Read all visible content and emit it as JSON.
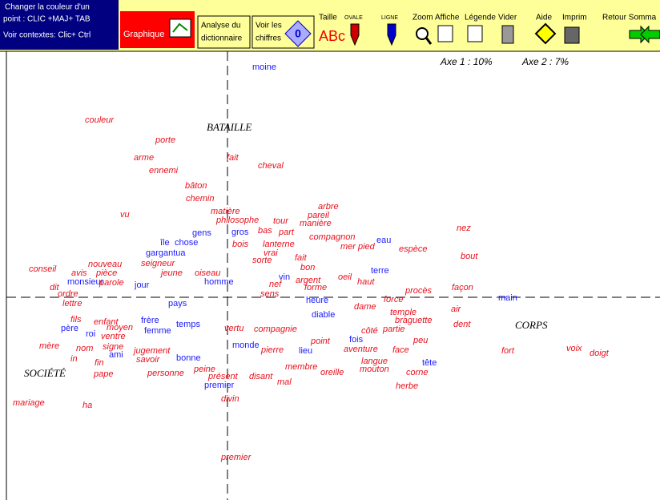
{
  "toolbar": {
    "info_lines": [
      "Changer la couleur d'un",
      "point : CLIC +MAJ+ TAB",
      "Voir contextes: Clic+ Ctrl"
    ],
    "graphique": "Graphique",
    "analyse": [
      "Analyse du",
      "dictionnaire"
    ],
    "chiffres": [
      "Voir les",
      "chiffres"
    ],
    "chiffres_icon": "0",
    "taille_icon": "ABc",
    "tools": [
      "Taille",
      "OVALE",
      "LIGNE",
      "Zoom",
      "Affiche",
      "Légende",
      "Vider",
      "Aide",
      "Imprim",
      "Retour Somma"
    ]
  },
  "axis_info": [
    "Axe 1 : 10%",
    "Axe 2 : 7%"
  ],
  "chart_data": {
    "type": "scatter",
    "xlim": [
      -276,
      540
    ],
    "ylim": [
      -253,
      307
    ],
    "annotations": [
      {
        "text": "BATAILLE",
        "x": -26,
        "y": 211
      },
      {
        "text": "CORPS",
        "x": 359,
        "y": -36
      },
      {
        "text": "SOCIÉTÉ",
        "x": -254,
        "y": -96
      }
    ],
    "series": [
      {
        "color": "#e8101c",
        "style": "italic",
        "labels": [
          "couleur",
          "porte",
          "arme",
          "ennemi",
          "fait",
          "cheval",
          "bâton",
          "chemin",
          "vu",
          "matière",
          "arbre",
          "pareil",
          "philosophe",
          "tour",
          "manière",
          "nez",
          "bas",
          "part",
          "compagnon",
          "bois",
          "lanterne",
          "mer",
          "pied",
          "espèce",
          "bout",
          "vrai",
          "seigneur",
          "sorte",
          "fait",
          "conseil",
          "nouveau",
          "avis",
          "pièce",
          "jeune",
          "oiseau",
          "bon",
          "oeil",
          "haut",
          "argent",
          "nef",
          "forme",
          "façon",
          "sens",
          "dit",
          "parole",
          "procès",
          "ordre",
          "force",
          "lettre",
          "air",
          "dame",
          "temple",
          "fils",
          "enfant",
          "braguette",
          "dent",
          "moyen",
          "vertu",
          "partie",
          "côté",
          "ventre",
          "compagnie",
          "mère",
          "nom",
          "signe",
          "jugement",
          "pierre",
          "peu",
          "face",
          "aventure",
          "in",
          "fin",
          "savoir",
          "langue",
          "mouton",
          "corne",
          "pape",
          "personne",
          "peine",
          "présent",
          "disant",
          "mal",
          "membre",
          "oreille",
          "herbe",
          "mariage",
          "ha",
          "divin",
          "premier",
          "fort",
          "voix",
          "doigt",
          "point"
        ],
        "x": [
          -178,
          -90,
          -117,
          -98,
          -1,
          38,
          -53,
          -52,
          -134,
          -21,
          113,
          100,
          -14,
          57,
          90,
          286,
          38,
          64,
          102,
          6,
          44,
          141,
          163,
          214,
          291,
          45,
          -108,
          31,
          84,
          -248,
          -174,
          -195,
          -164,
          -83,
          -41,
          91,
          138,
          162,
          85,
          52,
          96,
          280,
          41,
          -222,
          -160,
          222,
          -212,
          195,
          -206,
          279,
          158,
          203,
          -196,
          -167,
          209,
          282,
          -151,
          -4,
          194,
          167,
          -158,
          33,
          -235,
          -189,
          -156,
          -117,
          42,
          232,
          206,
          145,
          -196,
          -166,
          -114,
          167,
          165,
          223,
          -167,
          -100,
          -42,
          -24,
          27,
          62,
          72,
          116,
          210,
          -268,
          -181,
          -8,
          -8,
          342,
          423,
          452,
          104
        ],
        "y": [
          221,
          196,
          174,
          158,
          174,
          164,
          139,
          123,
          103,
          107,
          113,
          102,
          96,
          95,
          92,
          86,
          83,
          81,
          75,
          66,
          66,
          63,
          63,
          60,
          51,
          55,
          42,
          46,
          49,
          35,
          41,
          30,
          30,
          30,
          30,
          37,
          25,
          19,
          21,
          16,
          12,
          12,
          4,
          12,
          18,
          8,
          4,
          -3,
          -8,
          -15,
          -12,
          -19,
          -28,
          -31,
          -29,
          -34,
          -38,
          -39,
          -40,
          -42,
          -49,
          -40,
          -61,
          -64,
          -62,
          -67,
          -66,
          -54,
          -66,
          -65,
          -77,
          -82,
          -78,
          -80,
          -90,
          -94,
          -96,
          -95,
          -90,
          -99,
          -99,
          -106,
          -87,
          -94,
          -111,
          -132,
          -135,
          -127,
          -200,
          -67,
          -64,
          -70,
          -55
        ]
      },
      {
        "color": "#1a1aff",
        "style": "normal",
        "labels": [
          "moine",
          "gens",
          "gros",
          "île",
          "chose",
          "gargantua",
          "monsieur",
          "jour",
          "homme",
          "vin",
          "eau",
          "terre",
          "heure",
          "diable",
          "main",
          "pays",
          "frère",
          "temps",
          "femme",
          "père",
          "roi",
          "ami",
          "bonne",
          "monde",
          "lieu",
          "fois",
          "tête",
          "premier"
        ],
        "x": [
          31,
          -44,
          5,
          -84,
          -66,
          -102,
          -200,
          -116,
          -29,
          64,
          186,
          179,
          98,
          105,
          338,
          -74,
          -108,
          -64,
          -104,
          -208,
          -177,
          -148,
          -64,
          6,
          89,
          152,
          243,
          -29
        ],
        "y": [
          287,
          80,
          81,
          68,
          68,
          55,
          19,
          15,
          19,
          25,
          71,
          33,
          -4,
          -22,
          -1,
          -8,
          -29,
          -34,
          -42,
          -39,
          -46,
          -72,
          -76,
          -60,
          -67,
          -53,
          -82,
          -110
        ]
      }
    ]
  }
}
